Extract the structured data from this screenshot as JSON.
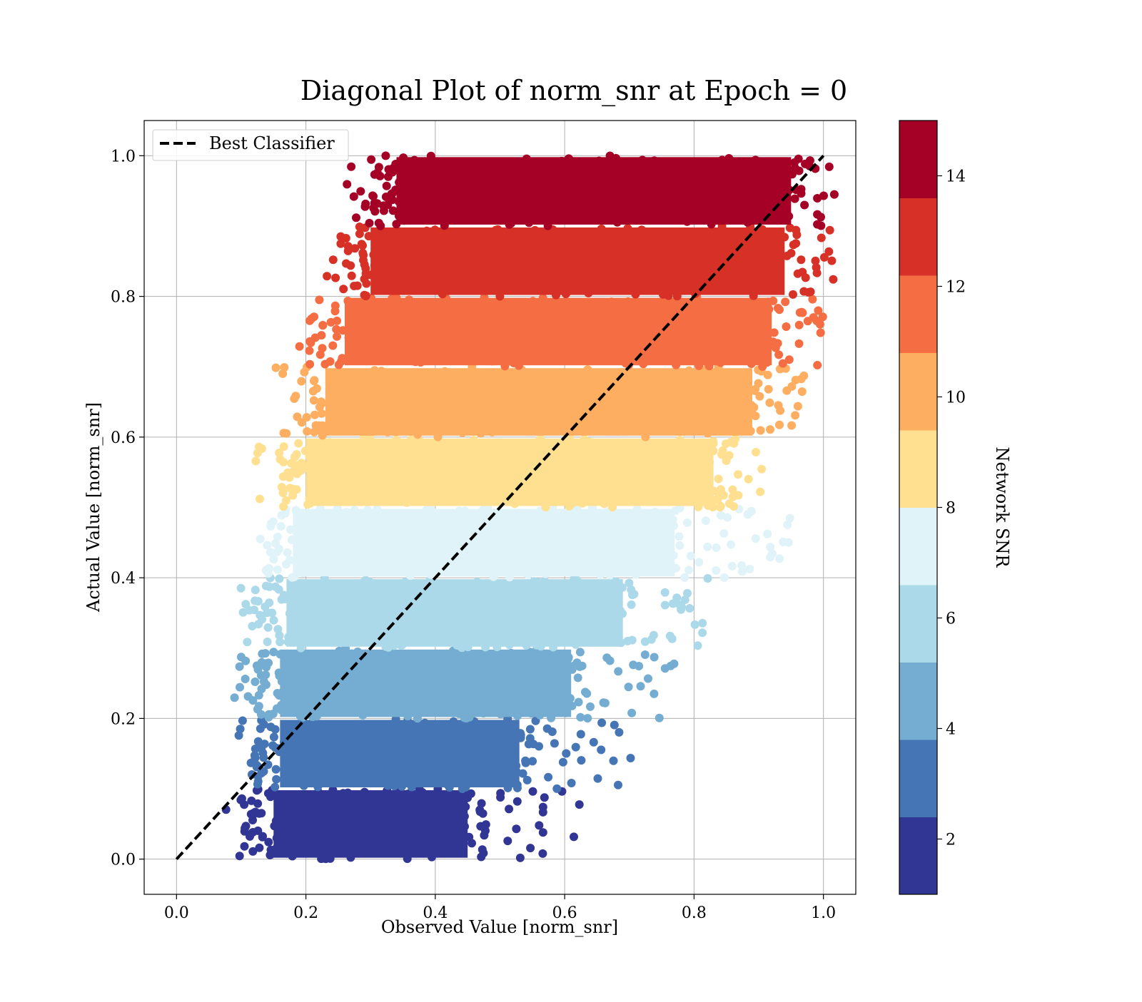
{
  "chart_data": {
    "type": "scatter",
    "title": "Diagonal Plot of norm_snr at Epoch = 0",
    "xlabel": "Observed Value [norm_snr]",
    "ylabel": "Actual Value [norm_snr]",
    "xlim": [
      -0.05,
      1.05
    ],
    "ylim": [
      -0.05,
      1.05
    ],
    "xticks": [
      "0.0",
      "0.2",
      "0.4",
      "0.6",
      "0.8",
      "1.0"
    ],
    "yticks": [
      "0.0",
      "0.2",
      "0.4",
      "0.6",
      "0.8",
      "1.0"
    ],
    "grid": true,
    "legend": {
      "location": "upper-left",
      "entries": [
        "Best Classifier"
      ]
    },
    "reference_line": {
      "name": "Best Classifier",
      "style": "dashed",
      "color": "#000000",
      "x": [
        0.0,
        1.0
      ],
      "y": [
        0.0,
        1.0
      ]
    },
    "colorbar": {
      "label": "Network SNR",
      "colormap": "RdYlBu_r",
      "range": [
        1,
        15
      ],
      "ticks": [
        "2",
        "4",
        "6",
        "8",
        "10",
        "12",
        "14"
      ],
      "colors": [
        "#313695",
        "#4575b4",
        "#74add1",
        "#abd9e9",
        "#e0f3f8",
        "#fee090",
        "#fdae61",
        "#f46d43",
        "#d73027",
        "#a50026"
      ]
    },
    "bands": [
      {
        "y_range": [
          0.0,
          0.1
        ],
        "x_range": [
          0.11,
          0.48
        ],
        "color": "#313695"
      },
      {
        "y_range": [
          0.1,
          0.2
        ],
        "x_range": [
          0.12,
          0.56
        ],
        "color": "#4575b4"
      },
      {
        "y_range": [
          0.2,
          0.3
        ],
        "x_range": [
          0.12,
          0.64
        ],
        "color": "#74add1"
      },
      {
        "y_range": [
          0.3,
          0.4
        ],
        "x_range": [
          0.13,
          0.72
        ],
        "color": "#abd9e9"
      },
      {
        "y_range": [
          0.4,
          0.5
        ],
        "x_range": [
          0.14,
          0.8
        ],
        "color": "#e0f3f8"
      },
      {
        "y_range": [
          0.5,
          0.6
        ],
        "x_range": [
          0.16,
          0.86
        ],
        "color": "#fee090"
      },
      {
        "y_range": [
          0.6,
          0.7
        ],
        "x_range": [
          0.19,
          0.92
        ],
        "color": "#fdae61"
      },
      {
        "y_range": [
          0.7,
          0.8
        ],
        "x_range": [
          0.22,
          0.95
        ],
        "color": "#f46d43"
      },
      {
        "y_range": [
          0.8,
          0.9
        ],
        "x_range": [
          0.26,
          0.97
        ],
        "color": "#d73027"
      },
      {
        "y_range": [
          0.9,
          1.0
        ],
        "x_range": [
          0.3,
          0.98
        ],
        "color": "#a50026"
      }
    ]
  }
}
